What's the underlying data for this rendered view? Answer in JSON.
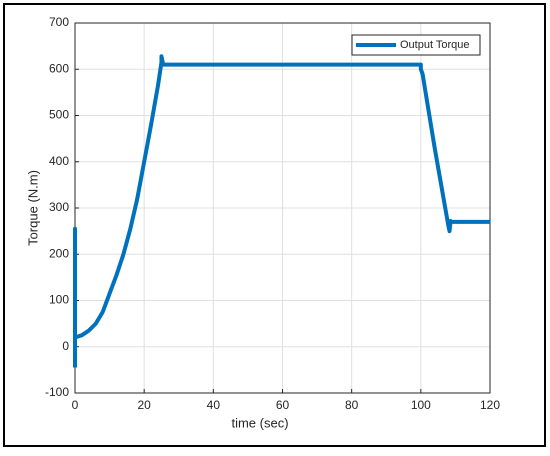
{
  "chart_data": {
    "type": "line",
    "xlabel": "time (sec)",
    "ylabel": "Torque (N.m)",
    "x": [
      0,
      0,
      0,
      2,
      4,
      6,
      8,
      10,
      12,
      14,
      16,
      18,
      20,
      22,
      24,
      25,
      25,
      25.5,
      40,
      60,
      80,
      100,
      100,
      100.5,
      104,
      108,
      108.3,
      108.6,
      109,
      120
    ],
    "series": [
      {
        "name": "Output Torque",
        "color": "#0072bd",
        "values": [
          -45,
          255,
          20,
          25,
          35,
          50,
          75,
          115,
          155,
          200,
          255,
          320,
          400,
          480,
          565,
          615,
          628,
          610,
          610,
          610,
          610,
          610,
          600,
          590,
          430,
          260,
          250,
          272,
          270,
          270
        ]
      }
    ],
    "xlim": [
      0,
      120
    ],
    "xticks": [
      0,
      20,
      40,
      60,
      80,
      100,
      120
    ],
    "ylim": [
      -100,
      700
    ],
    "yticks": [
      -100,
      0,
      100,
      200,
      300,
      400,
      500,
      600,
      700
    ],
    "grid": true,
    "legend": "northeast"
  }
}
